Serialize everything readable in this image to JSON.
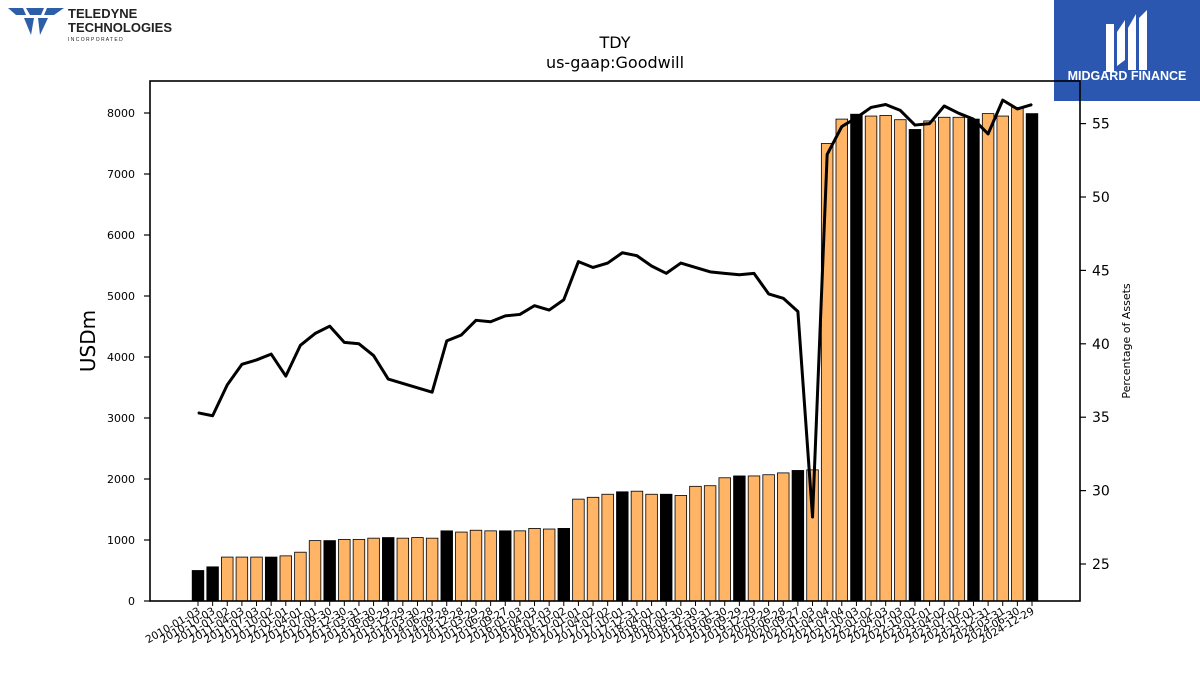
{
  "brand": {
    "company_line1": "TELEDYNE",
    "company_line2": "TECHNOLOGIES",
    "company_line3": "I N C O R P O R A T E D",
    "publisher": "MIDGARD FINANCE"
  },
  "colors": {
    "bar_orange": "#ffb466",
    "bar_black": "#000000",
    "line": "#000000",
    "publisher_bg": "#2b57b0",
    "logo_blue": "#2d5fa8"
  },
  "chart_data": {
    "type": "bar",
    "title": "TDY",
    "subtitle": "us-gaap:Goodwill",
    "ylabel": "USDm",
    "y2label": "Percentage of Assets",
    "ylim": [
      0,
      8500
    ],
    "y2lim": [
      22.5,
      58.0
    ],
    "yticks": [
      0,
      1000,
      2000,
      3000,
      4000,
      5000,
      6000,
      7000,
      8000
    ],
    "y2ticks": [
      25,
      30,
      35,
      40,
      45,
      50,
      55
    ],
    "grid": false,
    "legend": "none",
    "categories": [
      "2010-01-03",
      "2010-10-03",
      "2011-01-02",
      "2011-04-03",
      "2011-07-03",
      "2011-10-02",
      "2012-01-01",
      "2012-04-01",
      "2012-07-01",
      "2012-09-30",
      "2012-12-30",
      "2013-03-31",
      "2013-06-30",
      "2013-09-29",
      "2013-12-29",
      "2014-03-30",
      "2014-06-29",
      "2014-09-28",
      "2014-12-28",
      "2015-03-29",
      "2015-06-28",
      "2015-09-27",
      "2016-01-03",
      "2016-04-03",
      "2016-07-03",
      "2016-10-02",
      "2017-01-01",
      "2017-04-02",
      "2017-07-02",
      "2017-10-01",
      "2017-12-31",
      "2018-04-01",
      "2018-07-01",
      "2018-09-30",
      "2018-12-30",
      "2019-03-31",
      "2019-06-30",
      "2019-09-29",
      "2019-12-29",
      "2020-03-29",
      "2020-06-28",
      "2020-09-27",
      "2021-01-03",
      "2021-04-04",
      "2021-07-04",
      "2021-10-03",
      "2022-01-02",
      "2022-04-03",
      "2022-07-03",
      "2022-10-02",
      "2023-01-01",
      "2023-04-02",
      "2023-07-02",
      "2023-10-01",
      "2023-12-31",
      "2024-03-31",
      "2024-06-30",
      "2024-12-29"
    ],
    "values": [
      500,
      560,
      720,
      720,
      720,
      720,
      740,
      800,
      990,
      990,
      1010,
      1010,
      1030,
      1040,
      1030,
      1040,
      1030,
      1150,
      1130,
      1160,
      1150,
      1150,
      1150,
      1190,
      1180,
      1190,
      1670,
      1700,
      1750,
      1790,
      1800,
      1750,
      1750,
      1730,
      1880,
      1890,
      2020,
      2050,
      2050,
      2070,
      2100,
      2140,
      2150,
      7500,
      7900,
      7980,
      7950,
      7960,
      7890,
      7730,
      7870,
      7930,
      7930,
      7900,
      7990,
      7950,
      8090,
      7990
    ],
    "bar_colors": [
      "black",
      "black",
      "orange",
      "orange",
      "orange",
      "black",
      "orange",
      "orange",
      "orange",
      "black",
      "orange",
      "orange",
      "orange",
      "black",
      "orange",
      "orange",
      "orange",
      "black",
      "orange",
      "orange",
      "orange",
      "black",
      "orange",
      "orange",
      "orange",
      "black",
      "orange",
      "orange",
      "orange",
      "black",
      "orange",
      "orange",
      "black",
      "orange",
      "orange",
      "orange",
      "orange",
      "black",
      "orange",
      "orange",
      "orange",
      "black",
      "orange",
      "orange",
      "orange",
      "black",
      "orange",
      "orange",
      "orange",
      "black",
      "orange",
      "orange",
      "orange",
      "black",
      "orange",
      "orange",
      "orange",
      "black"
    ],
    "series": [
      {
        "type": "line",
        "axis": "right",
        "values": [
          35.3,
          35.1,
          37.2,
          38.6,
          38.9,
          39.3,
          37.8,
          39.9,
          40.7,
          41.2,
          40.1,
          40.0,
          39.2,
          37.6,
          37.3,
          37.0,
          36.7,
          40.2,
          40.6,
          41.6,
          41.5,
          41.9,
          42.0,
          42.6,
          42.3,
          43.0,
          45.6,
          45.2,
          45.5,
          46.2,
          46.0,
          45.3,
          44.8,
          45.5,
          45.2,
          44.9,
          44.8,
          44.7,
          44.8,
          43.4,
          43.1,
          42.2,
          28.2,
          52.9,
          54.8,
          55.4,
          56.1,
          56.3,
          55.9,
          54.9,
          55.0,
          56.2,
          55.7,
          55.3,
          54.3,
          56.6,
          56.0,
          56.3
        ]
      }
    ]
  }
}
